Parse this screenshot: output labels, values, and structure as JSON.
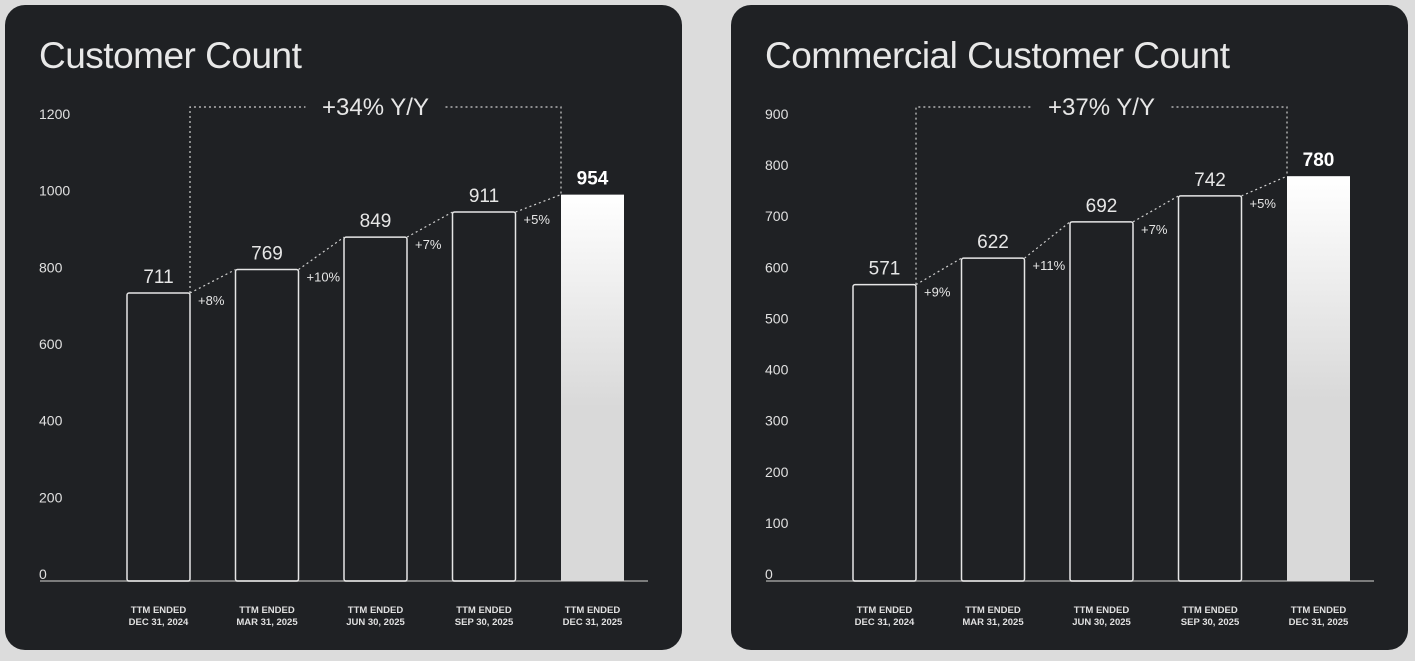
{
  "chart_data": [
    {
      "type": "bar",
      "title": "Customer Count",
      "categories": [
        [
          "TTM ENDED",
          "DEC 31, 2024"
        ],
        [
          "TTM ENDED",
          "MAR 31, 2025"
        ],
        [
          "TTM ENDED",
          "JUN 30, 2025"
        ],
        [
          "TTM ENDED",
          "SEP 30, 2025"
        ],
        [
          "TTM ENDED",
          "DEC 31, 2025"
        ]
      ],
      "values": [
        711,
        769,
        849,
        911,
        954
      ],
      "growth": [
        "+8%",
        "+10%",
        "+7%",
        "+5%"
      ],
      "yoy": "+34% Y/Y",
      "yticks": [
        0,
        200,
        400,
        600,
        800,
        1000,
        1200
      ],
      "ylim": [
        0,
        1200
      ],
      "grid": false
    },
    {
      "type": "bar",
      "title": "Commercial Customer Count",
      "categories": [
        [
          "TTM ENDED",
          "DEC 31, 2024"
        ],
        [
          "TTM ENDED",
          "MAR 31, 2025"
        ],
        [
          "TTM ENDED",
          "JUN 30, 2025"
        ],
        [
          "TTM ENDED",
          "SEP 30, 2025"
        ],
        [
          "TTM ENDED",
          "DEC 31, 2025"
        ]
      ],
      "values": [
        571,
        622,
        692,
        742,
        780
      ],
      "growth": [
        "+9%",
        "+11%",
        "+7%",
        "+5%"
      ],
      "yoy": "+37% Y/Y",
      "yticks": [
        0,
        100,
        200,
        300,
        400,
        500,
        600,
        700,
        800,
        900
      ],
      "ylim": [
        0,
        900
      ],
      "grid": false
    }
  ],
  "colors": {
    "panel": "#1f2124",
    "text": "#e8e8e8",
    "highlight": "#ffffff"
  }
}
